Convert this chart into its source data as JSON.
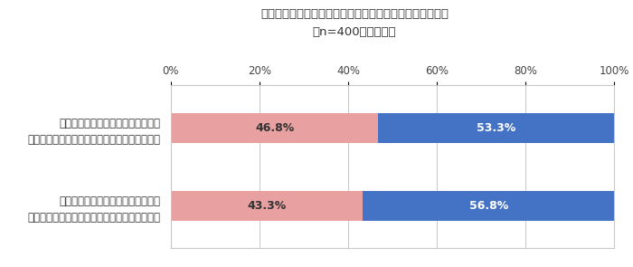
{
  "title_line1": "各項目について、それぞれ経験の有無をお答えください。",
  "title_line2": "（n=400）単数回答",
  "categories": [
    "水源の確保が難しいことが理由で、\n高圧洗浄機を使いたかったが使えなかった経験",
    "電源の確保が難しいことが理由で、\n高圧洗浄機を使いたかったが使えなかった経験"
  ],
  "aru_values": [
    46.8,
    43.3
  ],
  "nai_values": [
    53.3,
    56.8
  ],
  "aru_color": "#e8a0a0",
  "nai_color": "#4472c4",
  "xlabel_ticks": [
    0,
    20,
    40,
    60,
    80,
    100
  ],
  "xlim": [
    0,
    100
  ],
  "background_color": "#ffffff",
  "grid_color": "#c8c8c8",
  "bar_height": 0.38,
  "title_fontsize": 9.5,
  "label_fontsize": 8.5,
  "tick_fontsize": 8.5,
  "value_fontsize": 9,
  "legend_fontsize": 8.5
}
